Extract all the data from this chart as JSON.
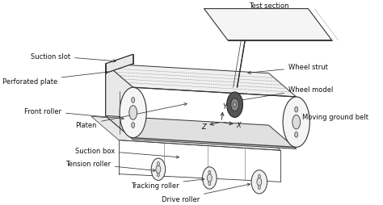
{
  "background_color": "#ffffff",
  "fig_width": 4.74,
  "fig_height": 2.55,
  "dpi": 100,
  "labels": {
    "test_section": "Test section",
    "suction_slot": "Suction slot",
    "perforated_plate": "Perforated plate",
    "front_roller": "Front roller",
    "platen": "Platen",
    "suction_box": "Suction box",
    "tension_roller": "Tension roller",
    "tracking_roller": "Tracking roller",
    "drive_roller": "Drive roller",
    "wheel_strut": "Wheel strut",
    "wheel_model": "Wheel model",
    "moving_ground_belt": "Moving ground belt"
  },
  "line_color": "#333333",
  "text_color": "#111111",
  "font_size": 6.0
}
